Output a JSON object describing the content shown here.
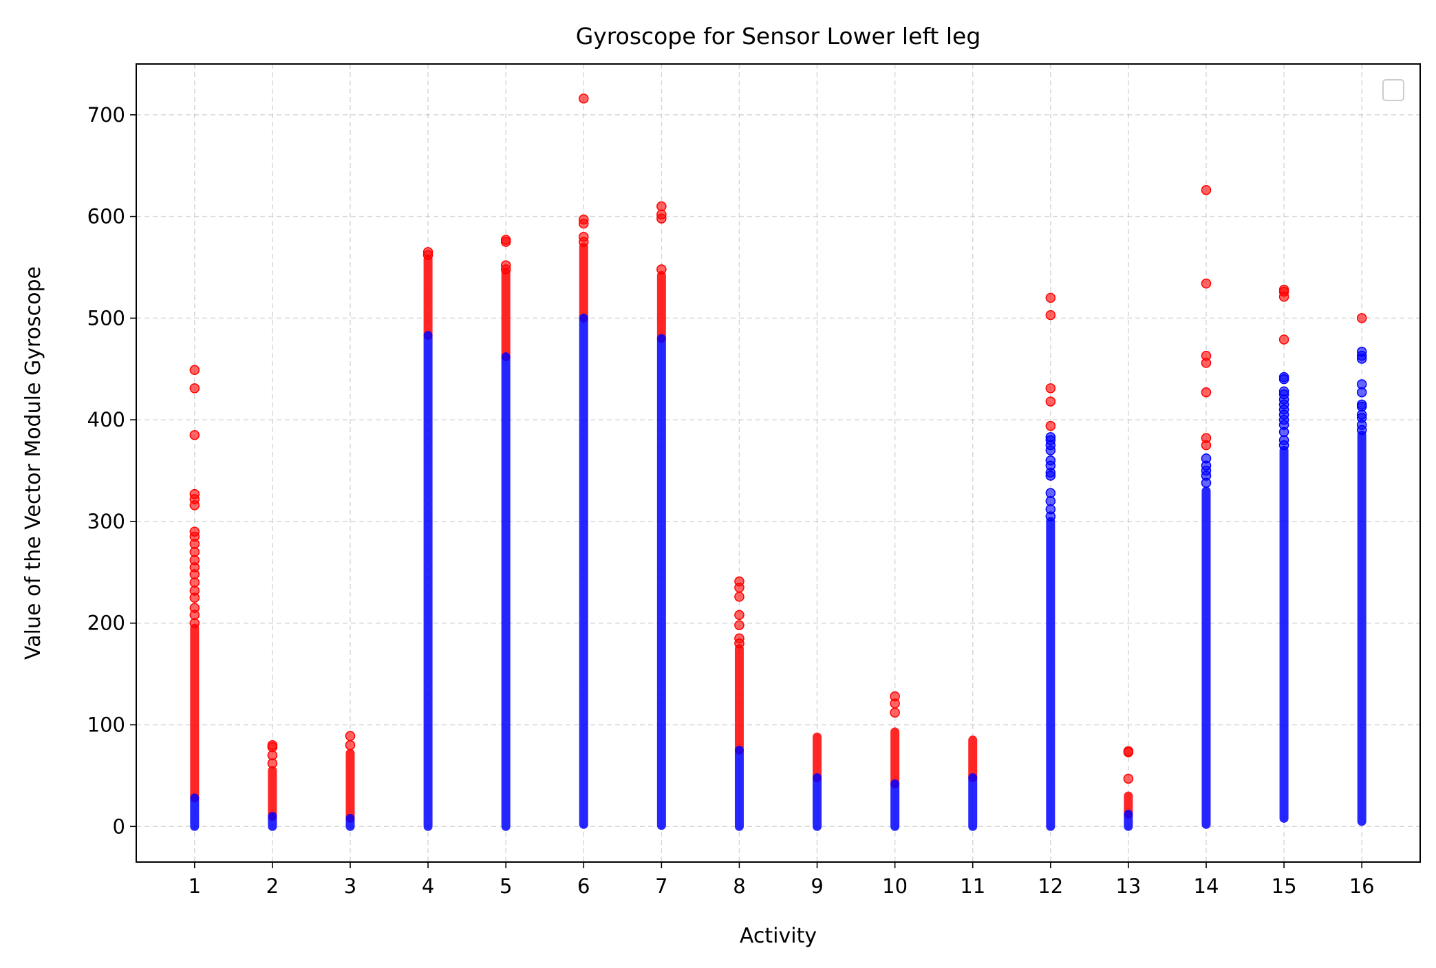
{
  "chart_data": {
    "type": "scatter",
    "title": "Gyroscope for Sensor Lower left leg",
    "xlabel": "Activity",
    "ylabel": "Value of the Vector Module Gyroscope",
    "xlim": [
      0.25,
      16.75
    ],
    "ylim": [
      -35,
      750
    ],
    "xticks": [
      1,
      2,
      3,
      4,
      5,
      6,
      7,
      8,
      9,
      10,
      11,
      12,
      13,
      14,
      15,
      16
    ],
    "yticks": [
      0,
      100,
      200,
      300,
      400,
      500,
      600,
      700
    ],
    "grid": true,
    "legend": {
      "placement": "top-right",
      "entries": []
    },
    "colors": {
      "inlier": "#0000ff",
      "outlier": "#ff0000"
    },
    "series": [
      {
        "color": "#0000ff",
        "bands": [
          {
            "x": 1,
            "min": 0,
            "max": 28
          },
          {
            "x": 2,
            "min": 0,
            "max": 10
          },
          {
            "x": 3,
            "min": 0,
            "max": 8
          },
          {
            "x": 4,
            "min": 0,
            "max": 483
          },
          {
            "x": 5,
            "min": 0,
            "max": 462
          },
          {
            "x": 6,
            "min": 2,
            "max": 500
          },
          {
            "x": 7,
            "min": 1,
            "max": 480
          },
          {
            "x": 8,
            "min": 0,
            "max": 75
          },
          {
            "x": 9,
            "min": 0,
            "max": 48
          },
          {
            "x": 10,
            "min": 0,
            "max": 42
          },
          {
            "x": 11,
            "min": 0,
            "max": 48
          },
          {
            "x": 12,
            "min": 0,
            "max": 300
          },
          {
            "x": 13,
            "min": 0,
            "max": 12
          },
          {
            "x": 14,
            "min": 2,
            "max": 330
          },
          {
            "x": 15,
            "min": 8,
            "max": 370
          },
          {
            "x": 16,
            "min": 5,
            "max": 385
          }
        ],
        "points": [
          {
            "x": 12,
            "y": 305
          },
          {
            "x": 12,
            "y": 312
          },
          {
            "x": 12,
            "y": 320
          },
          {
            "x": 12,
            "y": 328
          },
          {
            "x": 12,
            "y": 345
          },
          {
            "x": 12,
            "y": 348
          },
          {
            "x": 12,
            "y": 355
          },
          {
            "x": 12,
            "y": 360
          },
          {
            "x": 12,
            "y": 370
          },
          {
            "x": 12,
            "y": 375
          },
          {
            "x": 12,
            "y": 380
          },
          {
            "x": 12,
            "y": 383
          },
          {
            "x": 14,
            "y": 338
          },
          {
            "x": 14,
            "y": 345
          },
          {
            "x": 14,
            "y": 350
          },
          {
            "x": 14,
            "y": 355
          },
          {
            "x": 14,
            "y": 362
          },
          {
            "x": 15,
            "y": 375
          },
          {
            "x": 15,
            "y": 380
          },
          {
            "x": 15,
            "y": 388
          },
          {
            "x": 15,
            "y": 395
          },
          {
            "x": 15,
            "y": 400
          },
          {
            "x": 15,
            "y": 405
          },
          {
            "x": 15,
            "y": 410
          },
          {
            "x": 15,
            "y": 415
          },
          {
            "x": 15,
            "y": 420
          },
          {
            "x": 15,
            "y": 425
          },
          {
            "x": 15,
            "y": 428
          },
          {
            "x": 15,
            "y": 440
          },
          {
            "x": 15,
            "y": 442
          },
          {
            "x": 16,
            "y": 390
          },
          {
            "x": 16,
            "y": 395
          },
          {
            "x": 16,
            "y": 402
          },
          {
            "x": 16,
            "y": 405
          },
          {
            "x": 16,
            "y": 413
          },
          {
            "x": 16,
            "y": 415
          },
          {
            "x": 16,
            "y": 427
          },
          {
            "x": 16,
            "y": 435
          },
          {
            "x": 16,
            "y": 460
          },
          {
            "x": 16,
            "y": 463
          },
          {
            "x": 16,
            "y": 467
          }
        ]
      },
      {
        "color": "#ff0000",
        "bands": [
          {
            "x": 1,
            "min": 28,
            "max": 195
          },
          {
            "x": 2,
            "min": 10,
            "max": 55
          },
          {
            "x": 3,
            "min": 8,
            "max": 72
          },
          {
            "x": 4,
            "min": 483,
            "max": 558
          },
          {
            "x": 5,
            "min": 462,
            "max": 545
          },
          {
            "x": 6,
            "min": 500,
            "max": 570
          },
          {
            "x": 7,
            "min": 480,
            "max": 542
          },
          {
            "x": 8,
            "min": 75,
            "max": 175
          },
          {
            "x": 9,
            "min": 48,
            "max": 88
          },
          {
            "x": 10,
            "min": 42,
            "max": 93
          },
          {
            "x": 11,
            "min": 48,
            "max": 85
          },
          {
            "x": 13,
            "min": 12,
            "max": 30
          }
        ],
        "points": [
          {
            "x": 1,
            "y": 449
          },
          {
            "x": 1,
            "y": 431
          },
          {
            "x": 1,
            "y": 385
          },
          {
            "x": 1,
            "y": 327
          },
          {
            "x": 1,
            "y": 322
          },
          {
            "x": 1,
            "y": 316
          },
          {
            "x": 1,
            "y": 290
          },
          {
            "x": 1,
            "y": 285
          },
          {
            "x": 1,
            "y": 278
          },
          {
            "x": 1,
            "y": 270
          },
          {
            "x": 1,
            "y": 262
          },
          {
            "x": 1,
            "y": 255
          },
          {
            "x": 1,
            "y": 248
          },
          {
            "x": 1,
            "y": 240
          },
          {
            "x": 1,
            "y": 232
          },
          {
            "x": 1,
            "y": 225
          },
          {
            "x": 1,
            "y": 215
          },
          {
            "x": 1,
            "y": 208
          },
          {
            "x": 1,
            "y": 200
          },
          {
            "x": 2,
            "y": 80
          },
          {
            "x": 2,
            "y": 78
          },
          {
            "x": 2,
            "y": 70
          },
          {
            "x": 2,
            "y": 62
          },
          {
            "x": 3,
            "y": 89
          },
          {
            "x": 3,
            "y": 80
          },
          {
            "x": 4,
            "y": 565
          },
          {
            "x": 4,
            "y": 562
          },
          {
            "x": 5,
            "y": 577
          },
          {
            "x": 5,
            "y": 575
          },
          {
            "x": 5,
            "y": 552
          },
          {
            "x": 5,
            "y": 548
          },
          {
            "x": 6,
            "y": 716
          },
          {
            "x": 6,
            "y": 597
          },
          {
            "x": 6,
            "y": 593
          },
          {
            "x": 6,
            "y": 580
          },
          {
            "x": 6,
            "y": 575
          },
          {
            "x": 7,
            "y": 610
          },
          {
            "x": 7,
            "y": 602
          },
          {
            "x": 7,
            "y": 598
          },
          {
            "x": 7,
            "y": 548
          },
          {
            "x": 8,
            "y": 241
          },
          {
            "x": 8,
            "y": 235
          },
          {
            "x": 8,
            "y": 226
          },
          {
            "x": 8,
            "y": 208
          },
          {
            "x": 8,
            "y": 198
          },
          {
            "x": 8,
            "y": 185
          },
          {
            "x": 8,
            "y": 180
          },
          {
            "x": 10,
            "y": 128
          },
          {
            "x": 10,
            "y": 121
          },
          {
            "x": 10,
            "y": 112
          },
          {
            "x": 12,
            "y": 520
          },
          {
            "x": 12,
            "y": 503
          },
          {
            "x": 12,
            "y": 431
          },
          {
            "x": 12,
            "y": 418
          },
          {
            "x": 12,
            "y": 394
          },
          {
            "x": 13,
            "y": 74
          },
          {
            "x": 13,
            "y": 73
          },
          {
            "x": 13,
            "y": 47
          },
          {
            "x": 14,
            "y": 626
          },
          {
            "x": 14,
            "y": 534
          },
          {
            "x": 14,
            "y": 463
          },
          {
            "x": 14,
            "y": 456
          },
          {
            "x": 14,
            "y": 427
          },
          {
            "x": 14,
            "y": 382
          },
          {
            "x": 14,
            "y": 375
          },
          {
            "x": 15,
            "y": 528
          },
          {
            "x": 15,
            "y": 526
          },
          {
            "x": 15,
            "y": 521
          },
          {
            "x": 15,
            "y": 479
          },
          {
            "x": 16,
            "y": 500
          }
        ]
      }
    ]
  }
}
